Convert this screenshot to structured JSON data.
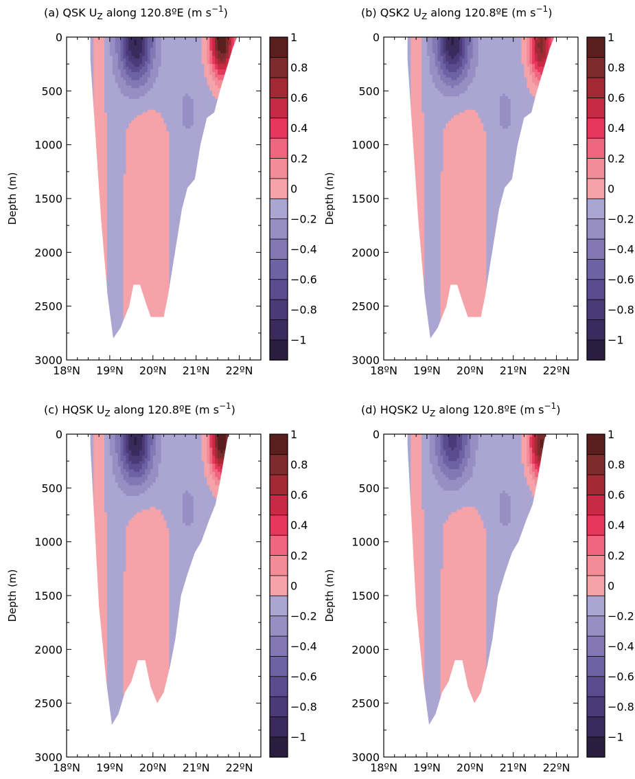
{
  "chart_data": [
    {
      "type": "heatmap",
      "title_prefix": "(a) QSK U",
      "title_sub": "Z",
      "title_suffix": " along 120.8ºE (m s",
      "title_sup": "−1",
      "title_end": ")",
      "ylabel": "Depth (m)",
      "x_ticks": [
        "18ºN",
        "19ºN",
        "20ºN",
        "21ºN",
        "22ºN"
      ],
      "y_ticks": [
        "0",
        "500",
        "1000",
        "1500",
        "2000",
        "2500",
        "3000"
      ],
      "xlim": [
        18,
        22.5
      ],
      "ylim": [
        0,
        3000
      ],
      "colorbar_ticks": [
        "1",
        "0.8",
        "0.6",
        "0.4",
        "0.2",
        "0",
        "−0.2",
        "−0.4",
        "−0.6",
        "−0.8",
        "−1"
      ],
      "clim": [
        -1,
        1
      ],
      "section_bottom": [
        [
          18.55,
          200
        ],
        [
          18.8,
          1700
        ],
        [
          18.95,
          2400
        ],
        [
          19.08,
          2800
        ],
        [
          19.25,
          2700
        ],
        [
          19.45,
          2500
        ],
        [
          19.55,
          2300
        ],
        [
          19.7,
          2300
        ],
        [
          19.82,
          2450
        ],
        [
          19.95,
          2600
        ],
        [
          20.25,
          2600
        ],
        [
          20.35,
          2400
        ],
        [
          20.45,
          2150
        ],
        [
          20.55,
          1900
        ],
        [
          20.67,
          1600
        ],
        [
          20.8,
          1400
        ],
        [
          20.97,
          1320
        ],
        [
          21.1,
          1000
        ],
        [
          21.25,
          750
        ],
        [
          21.42,
          700
        ],
        [
          21.55,
          500
        ],
        [
          21.7,
          300
        ],
        [
          21.85,
          100
        ],
        [
          21.95,
          0
        ]
      ],
      "positive_cores": [
        {
          "lat": 21.6,
          "depth": 50,
          "max": 1.0
        }
      ],
      "negative_cores": [
        {
          "lat": 19.6,
          "depth": 50,
          "min": -0.8
        }
      ]
    },
    {
      "type": "heatmap",
      "title_prefix": "(b) QSK2 U",
      "title_sub": "Z",
      "title_suffix": " along 120.8ºE (m s",
      "title_sup": "−1",
      "title_end": ")",
      "ylabel": "Depth (m)",
      "x_ticks": [
        "18ºN",
        "19ºN",
        "20ºN",
        "21ºN",
        "22ºN"
      ],
      "y_ticks": [
        "0",
        "500",
        "1000",
        "1500",
        "2000",
        "2500",
        "3000"
      ],
      "xlim": [
        18,
        22.5
      ],
      "ylim": [
        0,
        3000
      ],
      "colorbar_ticks": [
        "1",
        "0.8",
        "0.6",
        "0.4",
        "0.2",
        "0",
        "−0.2",
        "−0.4",
        "−0.6",
        "−0.8",
        "−1"
      ],
      "clim": [
        -1,
        1
      ],
      "section_bottom": [
        [
          18.55,
          200
        ],
        [
          18.8,
          1700
        ],
        [
          18.95,
          2400
        ],
        [
          19.08,
          2800
        ],
        [
          19.25,
          2700
        ],
        [
          19.45,
          2500
        ],
        [
          19.55,
          2300
        ],
        [
          19.7,
          2300
        ],
        [
          19.82,
          2450
        ],
        [
          19.95,
          2600
        ],
        [
          20.25,
          2600
        ],
        [
          20.35,
          2400
        ],
        [
          20.45,
          2150
        ],
        [
          20.55,
          1900
        ],
        [
          20.67,
          1600
        ],
        [
          20.8,
          1400
        ],
        [
          20.97,
          1320
        ],
        [
          21.1,
          1000
        ],
        [
          21.25,
          750
        ],
        [
          21.42,
          700
        ],
        [
          21.55,
          500
        ],
        [
          21.7,
          300
        ],
        [
          21.85,
          100
        ],
        [
          21.95,
          0
        ]
      ],
      "positive_cores": [
        {
          "lat": 21.65,
          "depth": 80,
          "max": 0.8
        }
      ],
      "negative_cores": [
        {
          "lat": 19.6,
          "depth": 40,
          "min": -0.8
        }
      ]
    },
    {
      "type": "heatmap",
      "title_prefix": "(c) HQSK U",
      "title_sub": "Z",
      "title_suffix": " along 120.8ºE (m s",
      "title_sup": "−1",
      "title_end": ")",
      "ylabel": "Depth (m)",
      "x_ticks": [
        "18ºN",
        "19ºN",
        "20ºN",
        "21ºN",
        "22ºN"
      ],
      "y_ticks": [
        "0",
        "500",
        "1000",
        "1500",
        "2000",
        "2500",
        "3000"
      ],
      "xlim": [
        18,
        22.5
      ],
      "ylim": [
        0,
        3000
      ],
      "colorbar_ticks": [
        "1",
        "0.8",
        "0.6",
        "0.4",
        "0.2",
        "0",
        "−0.2",
        "−0.4",
        "−0.6",
        "−0.8",
        "−1"
      ],
      "clim": [
        -1,
        1
      ],
      "section_bottom": [
        [
          18.55,
          100
        ],
        [
          18.75,
          1600
        ],
        [
          18.92,
          2300
        ],
        [
          19.05,
          2700
        ],
        [
          19.2,
          2600
        ],
        [
          19.35,
          2400
        ],
        [
          19.5,
          2300
        ],
        [
          19.65,
          2100
        ],
        [
          19.82,
          2100
        ],
        [
          19.95,
          2350
        ],
        [
          20.1,
          2500
        ],
        [
          20.25,
          2400
        ],
        [
          20.4,
          2150
        ],
        [
          20.52,
          1900
        ],
        [
          20.65,
          1500
        ],
        [
          20.8,
          1300
        ],
        [
          20.97,
          1100
        ],
        [
          21.12,
          1000
        ],
        [
          21.3,
          800
        ],
        [
          21.45,
          650
        ],
        [
          21.55,
          450
        ],
        [
          21.7,
          100
        ],
        [
          21.75,
          0
        ]
      ],
      "positive_cores": [
        {
          "lat": 21.6,
          "depth": 70,
          "max": 1.0
        }
      ],
      "negative_cores": [
        {
          "lat": 19.6,
          "depth": 60,
          "min": -0.8
        }
      ]
    },
    {
      "type": "heatmap",
      "title_prefix": "(d) HQSK2 U",
      "title_sub": "Z",
      "title_suffix": " along 120.8ºE (m s",
      "title_sup": "−1",
      "title_end": ")",
      "ylabel": "Depth (m)",
      "x_ticks": [
        "18ºN",
        "19ºN",
        "20ºN",
        "21ºN",
        "22ºN"
      ],
      "y_ticks": [
        "0",
        "500",
        "1000",
        "1500",
        "2000",
        "2500",
        "3000"
      ],
      "xlim": [
        18,
        22.5
      ],
      "ylim": [
        0,
        3000
      ],
      "colorbar_ticks": [
        "1",
        "0.8",
        "0.6",
        "0.4",
        "0.2",
        "0",
        "−0.2",
        "−0.4",
        "−0.6",
        "−0.8",
        "−1"
      ],
      "clim": [
        -1,
        1
      ],
      "section_bottom": [
        [
          18.55,
          100
        ],
        [
          18.75,
          1600
        ],
        [
          18.92,
          2300
        ],
        [
          19.05,
          2700
        ],
        [
          19.2,
          2600
        ],
        [
          19.35,
          2400
        ],
        [
          19.5,
          2300
        ],
        [
          19.65,
          2100
        ],
        [
          19.82,
          2100
        ],
        [
          19.95,
          2350
        ],
        [
          20.1,
          2500
        ],
        [
          20.25,
          2400
        ],
        [
          20.4,
          2150
        ],
        [
          20.52,
          1900
        ],
        [
          20.65,
          1500
        ],
        [
          20.8,
          1300
        ],
        [
          20.97,
          1100
        ],
        [
          21.12,
          1000
        ],
        [
          21.3,
          800
        ],
        [
          21.45,
          650
        ],
        [
          21.55,
          450
        ],
        [
          21.7,
          100
        ],
        [
          21.75,
          0
        ]
      ],
      "positive_cores": [
        {
          "lat": 21.65,
          "depth": 80,
          "max": 0.9
        }
      ],
      "negative_cores": [
        {
          "lat": 19.6,
          "depth": 40,
          "min": -0.6
        }
      ]
    }
  ],
  "colors": {
    "levels": [
      "#2a1e3e",
      "#3b2a5c",
      "#4a3a78",
      "#5a4c8e",
      "#6d62a4",
      "#8378b4",
      "#978fc4",
      "#aba5d2",
      "#f5a3a8",
      "#f28d97",
      "#f06680",
      "#e8375c",
      "#c82a45",
      "#a32a35",
      "#7d2b2c",
      "#5a1e1f"
    ],
    "positive_mid": "#f5a3a8",
    "negative_mid": "#aba5d2",
    "axis": "#000000"
  }
}
